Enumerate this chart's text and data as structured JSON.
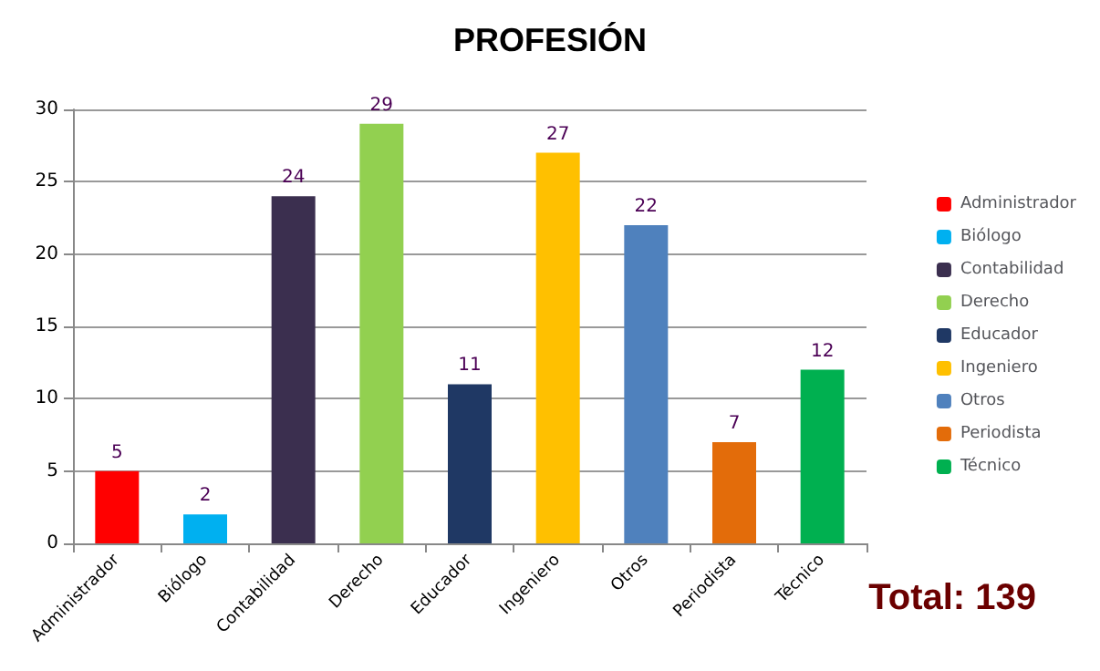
{
  "chart_data": {
    "type": "bar",
    "title": "PROFESIÓN",
    "categories": [
      "Administrador",
      "Biólogo",
      "Contabilidad",
      "Derecho",
      "Educador",
      "Ingeniero",
      "Otros",
      "Periodista",
      "Técnico"
    ],
    "stacked": true,
    "series": [
      {
        "name": "Administrador",
        "color": "#ff0000",
        "values": [
          5,
          null,
          null,
          null,
          null,
          null,
          null,
          null,
          null
        ]
      },
      {
        "name": "Biólogo",
        "color": "#00b0f0",
        "values": [
          null,
          2,
          null,
          null,
          null,
          null,
          null,
          null,
          null
        ]
      },
      {
        "name": "Contabilidad",
        "color": "#3b2f4f",
        "values": [
          null,
          null,
          24,
          null,
          null,
          null,
          null,
          null,
          null
        ]
      },
      {
        "name": "Derecho",
        "color": "#92d050",
        "values": [
          null,
          null,
          null,
          29,
          null,
          null,
          null,
          null,
          null
        ]
      },
      {
        "name": "Educador",
        "color": "#1f3864",
        "values": [
          null,
          null,
          null,
          null,
          11,
          null,
          null,
          null,
          null
        ]
      },
      {
        "name": "Ingeniero",
        "color": "#ffc000",
        "values": [
          null,
          null,
          null,
          null,
          null,
          27,
          null,
          null,
          null
        ]
      },
      {
        "name": "Otros",
        "color": "#4f81bd",
        "values": [
          null,
          null,
          null,
          null,
          null,
          null,
          22,
          null,
          null
        ]
      },
      {
        "name": "Periodista",
        "color": "#e36c0a",
        "values": [
          null,
          null,
          null,
          null,
          null,
          null,
          null,
          7,
          null
        ]
      },
      {
        "name": "Técnico",
        "color": "#00b050",
        "values": [
          null,
          null,
          null,
          null,
          null,
          null,
          null,
          null,
          12
        ]
      }
    ],
    "ylim": [
      0,
      30
    ],
    "yticks": [
      0,
      5,
      10,
      15,
      20,
      25,
      30
    ],
    "grid": "y",
    "legend": "right",
    "data_labels": true,
    "annotations": [
      "Total: 139"
    ]
  }
}
